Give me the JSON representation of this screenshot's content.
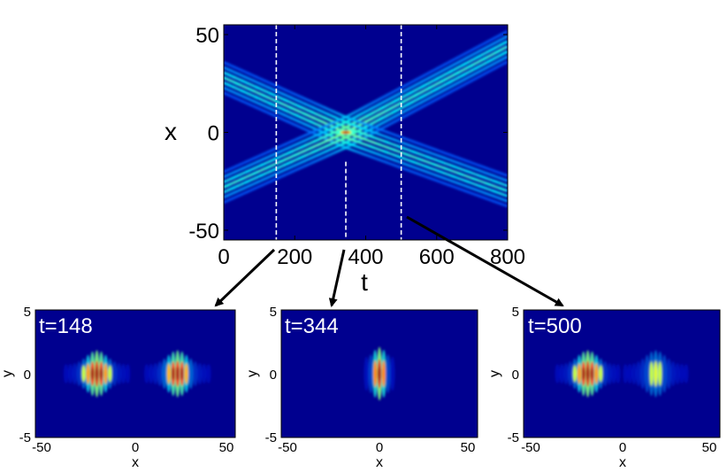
{
  "chart_data": [
    {
      "type": "heatmap",
      "xlabel": "t",
      "ylabel": "x",
      "xlim": [
        0,
        800
      ],
      "ylim": [
        -55,
        55
      ],
      "xticks": [
        0,
        200,
        400,
        600,
        800
      ],
      "yticks": [
        -50,
        0,
        50
      ],
      "xtick_labels": [
        "0",
        "200",
        "400",
        "600",
        "800"
      ],
      "ytick_labels": [
        "-50",
        "0",
        "50"
      ],
      "colormap": "jet",
      "background_color": "#00008f",
      "annotations": {
        "dashed_lines_t": [
          148,
          500
        ],
        "dashed_partial_line_t": 344,
        "collision_point": {
          "t": 344,
          "x": 0
        },
        "beams_before_collision": [
          {
            "t_start": 0,
            "x_start": 28,
            "t_end": 344,
            "x_end": 0
          },
          {
            "t_start": 0,
            "x_start": -28,
            "t_end": 344,
            "x_end": 0
          }
        ],
        "beams_after_collision": [
          {
            "t_start": 344,
            "x_start": 0,
            "t_end": 800,
            "x_end": 44
          },
          {
            "t_start": 344,
            "x_start": 0,
            "t_end": 800,
            "x_end": -30
          }
        ]
      }
    },
    {
      "type": "heatmap",
      "title": "t=148",
      "xlabel": "x",
      "ylabel": "y",
      "xlim": [
        -52,
        52
      ],
      "ylim": [
        -5,
        5
      ],
      "xtick_labels": [
        "-50",
        "0",
        "50"
      ],
      "ytick_labels": [
        "5",
        "0",
        "-5"
      ],
      "colormap": "jet",
      "peaks": [
        {
          "x": -20,
          "y": 0,
          "intensity": 1.0
        },
        {
          "x": 22,
          "y": 0,
          "intensity": 0.95
        }
      ]
    },
    {
      "type": "heatmap",
      "title": "t=344",
      "xlabel": "x",
      "ylabel": "y",
      "xlim": [
        -52,
        52
      ],
      "ylim": [
        -5,
        5
      ],
      "xtick_labels": [
        "-50",
        "0",
        "50"
      ],
      "ytick_labels": [
        "5",
        "0",
        "-5"
      ],
      "colormap": "jet",
      "peaks": [
        {
          "x": 0,
          "y": 0,
          "intensity": 1.0
        }
      ]
    },
    {
      "type": "heatmap",
      "title": "t=500",
      "xlabel": "x",
      "ylabel": "y",
      "xlim": [
        -52,
        52
      ],
      "ylim": [
        -5,
        5
      ],
      "xtick_labels": [
        "-50",
        "0",
        "50"
      ],
      "ytick_labels": [
        "5",
        "0",
        "-5"
      ],
      "colormap": "jet",
      "peaks": [
        {
          "x": -18,
          "y": 0,
          "intensity": 1.0
        },
        {
          "x": 18,
          "y": 0,
          "intensity": 0.45
        }
      ]
    }
  ]
}
